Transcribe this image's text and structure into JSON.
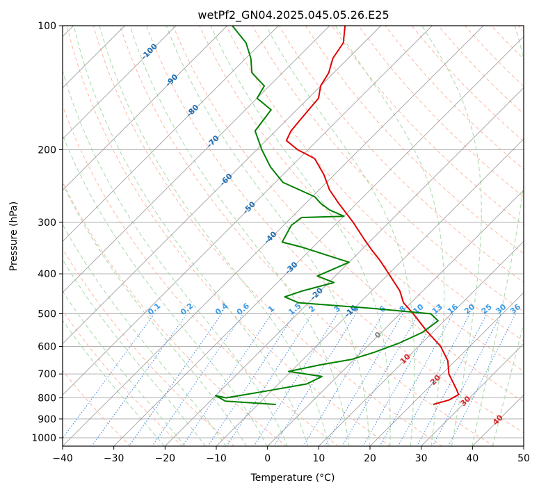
{
  "chart_data": {
    "type": "line",
    "title": "wetPf2_GN04.2025.045.05.26.E25",
    "xlabel": "Temperature (°C)",
    "ylabel": "Pressure (hPa)",
    "xlim": [
      -40,
      50
    ],
    "ylim": [
      1050,
      100
    ],
    "y_scale": "log",
    "grid": true,
    "x_ticks": [
      -40,
      -30,
      -20,
      -10,
      0,
      10,
      20,
      30,
      40,
      50
    ],
    "x_tick_labels": [
      "−40",
      "−30",
      "−20",
      "−10",
      "0",
      "10",
      "20",
      "30",
      "40",
      "50"
    ],
    "y_ticks": [
      100,
      200,
      300,
      400,
      500,
      600,
      700,
      800,
      900,
      1000
    ],
    "y_tick_labels": [
      "100",
      "200",
      "300",
      "400",
      "500",
      "600",
      "700",
      "800",
      "900",
      "1000"
    ],
    "series": [
      {
        "color": "#e00000",
        "pressure": [
          830,
          810,
          785,
          760,
          700,
          650,
          600,
          550,
          500,
          470,
          440,
          400,
          370,
          350,
          330,
          300,
          270,
          250,
          230,
          210,
          200,
          190,
          180,
          165,
          150,
          140,
          130,
          120,
          110,
          100
        ],
        "temperature": [
          24.2,
          26.4,
          27.2,
          25.6,
          21.3,
          18.5,
          14.3,
          8.5,
          2.6,
          -1.5,
          -4.5,
          -10.0,
          -14.5,
          -18.0,
          -21.5,
          -27.0,
          -33.5,
          -38.0,
          -42.0,
          -47.0,
          -52.0,
          -56.0,
          -57.0,
          -57.5,
          -58.0,
          -60.0,
          -61.0,
          -63.0,
          -64.0,
          -67.0
        ]
      },
      {
        "color": "#008000",
        "pressure": [
          830,
          815,
          790,
          800,
          770,
          740,
          710,
          690,
          665,
          645,
          620,
          590,
          555,
          520,
          500,
          485,
          470,
          455,
          440,
          420,
          405,
          375,
          345,
          335,
          305,
          292,
          290,
          280,
          270,
          260,
          240,
          220,
          200,
          180,
          160,
          150,
          140,
          130,
          120,
          110,
          100
        ],
        "temperature": [
          -6.5,
          -17.0,
          -20.0,
          -17.5,
          -11.0,
          -4.5,
          -3.0,
          -10.5,
          -5.5,
          -0.5,
          2.5,
          5.5,
          8.0,
          8.8,
          6.0,
          -6.5,
          -22.0,
          -25.8,
          -23.5,
          -19.0,
          -23.5,
          -20.0,
          -32.0,
          -37.0,
          -38.5,
          -38.0,
          -30.0,
          -34.0,
          -37.0,
          -39.5,
          -48.5,
          -54.0,
          -59.0,
          -64.0,
          -65.0,
          -70.0,
          -71.0,
          -76.0,
          -79.0,
          -83.0,
          -89.0
        ]
      }
    ],
    "isotherm_labels": [
      "-100",
      "-90",
      "-80",
      "-70",
      "-60",
      "-50",
      "-40",
      "-30",
      "-20",
      "-10",
      "0",
      "10",
      "20",
      "30",
      "40"
    ],
    "mixing_ratio_labels": [
      "0.1",
      "0.2",
      "0.4",
      "0.6",
      "1",
      "1.5",
      "2",
      "3",
      "4",
      "6",
      "8",
      "10",
      "13",
      "16",
      "20",
      "25",
      "30",
      "36"
    ]
  }
}
